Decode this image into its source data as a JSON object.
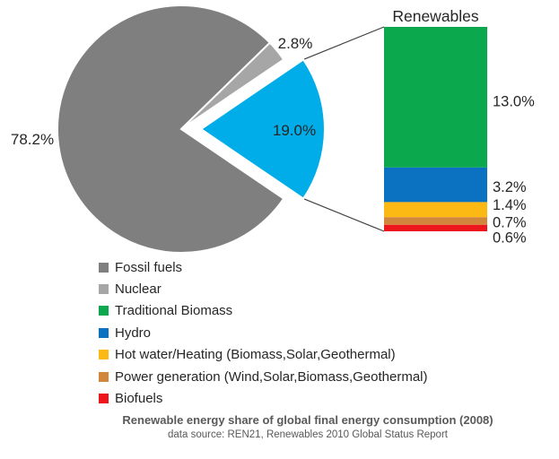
{
  "chart_data": {
    "type": "pie",
    "caption": "Renewable energy share of global final energy consumption (2008)",
    "source": "data source: REN21, Renewables 2010 Global Status Report",
    "text_color": "#262626",
    "leader_line_color": "#404040",
    "pie": {
      "unit": "%",
      "slices": [
        {
          "label": "Fossil fuels",
          "value": 78.2,
          "display": "78.2%",
          "color": "#7f7f7f",
          "exploded": false
        },
        {
          "label": "Nuclear",
          "value": 2.8,
          "display": "2.8%",
          "color": "#a6a6a6",
          "exploded": false
        },
        {
          "label": "Renewables",
          "value": 19.0,
          "display": "19.0%",
          "color": "#00ade8",
          "exploded": true
        }
      ]
    },
    "bar": {
      "title": "Renewables",
      "segments": [
        {
          "label": "Traditional Biomass",
          "value": 13.0,
          "display": "13.0%",
          "color": "#0ca84e"
        },
        {
          "label": "Hydro",
          "value": 3.2,
          "display": "3.2%",
          "color": "#0b72c2"
        },
        {
          "label": "Hot water/Heating (Biomass,Solar,Geothermal)",
          "value": 1.4,
          "display": "1.4%",
          "color": "#fcb813"
        },
        {
          "label": "Power generation (Wind,Solar,Biomass,Geothermal)",
          "value": 0.7,
          "display": "0.7%",
          "color": "#d2863c"
        },
        {
          "label": "Biofuels",
          "value": 0.6,
          "display": "0.6%",
          "color": "#ee161d"
        }
      ]
    },
    "legend": [
      {
        "label": "Fossil fuels",
        "color": "#7f7f7f"
      },
      {
        "label": "Nuclear",
        "color": "#a6a6a6"
      },
      {
        "label": "Traditional Biomass",
        "color": "#0ca84e"
      },
      {
        "label": "Hydro",
        "color": "#0b72c2"
      },
      {
        "label": "Hot water/Heating (Biomass,Solar,Geothermal)",
        "color": "#fcb813"
      },
      {
        "label": "Power generation (Wind,Solar,Biomass,Geothermal)",
        "color": "#d2863c"
      },
      {
        "label": "Biofuels",
        "color": "#ee161d"
      }
    ]
  }
}
